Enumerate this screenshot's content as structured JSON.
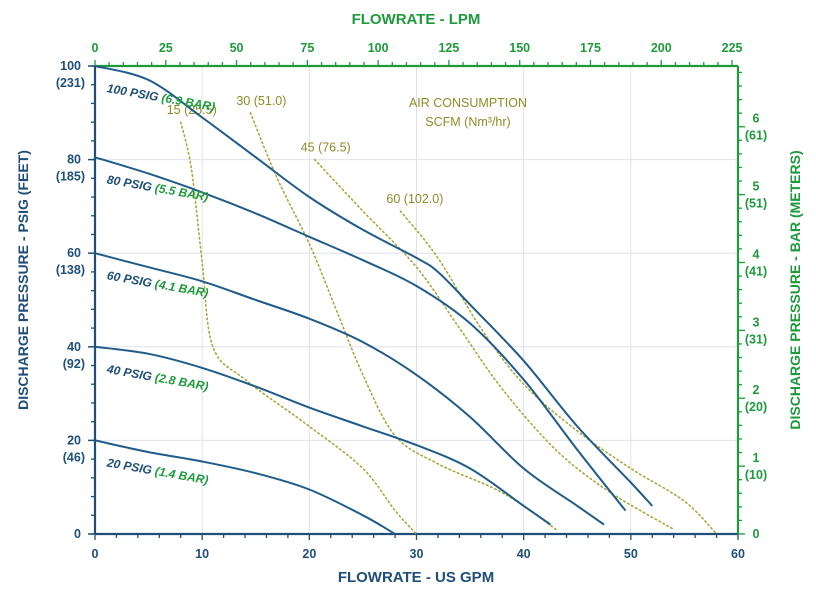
{
  "chart_data": {
    "type": "line",
    "title": "",
    "xlabel": "FLOWRATE - US GPM",
    "x2label": "FLOWRATE - LPM",
    "ylabel": "DISCHARGE PRESSURE - PSIG (FEET)",
    "y2label": "DISCHARGE PRESSURE - BAR (METERS)",
    "xlim": [
      0,
      60
    ],
    "ylim": [
      0,
      100
    ],
    "grid": true,
    "x_ticks": [
      "0",
      "10",
      "20",
      "30",
      "40",
      "50",
      "60"
    ],
    "x2_ticks": [
      "0",
      "25",
      "50",
      "75",
      "100",
      "125",
      "150",
      "175",
      "200",
      "225"
    ],
    "y_ticks": [
      {
        "psig": "0",
        "feet": ""
      },
      {
        "psig": "20",
        "feet": "(46)"
      },
      {
        "psig": "40",
        "feet": "(92)"
      },
      {
        "psig": "60",
        "feet": "(138)"
      },
      {
        "psig": "80",
        "feet": "(185)"
      },
      {
        "psig": "100",
        "feet": "(231)"
      }
    ],
    "y2_ticks": [
      {
        "bar": "0",
        "meters": ""
      },
      {
        "bar": "1",
        "meters": "(10)"
      },
      {
        "bar": "2",
        "meters": "(20)"
      },
      {
        "bar": "3",
        "meters": "(31)"
      },
      {
        "bar": "4",
        "meters": "(41)"
      },
      {
        "bar": "5",
        "meters": "(51)"
      },
      {
        "bar": "6",
        "meters": "(61)"
      }
    ],
    "series": [
      {
        "name": "100 PSIG",
        "name_bar": "(6.9 BAR)",
        "points": [
          [
            0,
            100
          ],
          [
            5,
            97
          ],
          [
            10,
            89
          ],
          [
            15,
            80.5
          ],
          [
            20,
            72
          ],
          [
            25,
            65
          ],
          [
            30,
            59
          ],
          [
            32,
            56
          ],
          [
            35,
            49
          ],
          [
            40,
            37
          ],
          [
            45,
            23
          ],
          [
            50,
            11
          ],
          [
            52,
            6
          ]
        ]
      },
      {
        "name": "80 PSIG",
        "name_bar": "(5.5 BAR)",
        "points": [
          [
            0,
            80.5
          ],
          [
            5,
            77
          ],
          [
            10,
            73
          ],
          [
            15,
            68.5
          ],
          [
            20,
            63.5
          ],
          [
            25,
            58.5
          ],
          [
            30,
            53
          ],
          [
            35,
            45
          ],
          [
            40,
            33
          ],
          [
            45,
            18
          ],
          [
            49.5,
            5
          ]
        ]
      },
      {
        "name": "60 PSIG",
        "name_bar": "(4.1 BAR)",
        "points": [
          [
            0,
            60
          ],
          [
            5,
            57
          ],
          [
            10,
            54
          ],
          [
            15,
            50
          ],
          [
            20,
            46
          ],
          [
            25,
            41
          ],
          [
            30,
            34
          ],
          [
            35,
            25
          ],
          [
            40,
            14
          ],
          [
            45,
            6
          ],
          [
            47.5,
            2
          ]
        ]
      },
      {
        "name": "40 PSIG",
        "name_bar": "(2.8 BAR)",
        "points": [
          [
            0,
            40
          ],
          [
            5,
            38.5
          ],
          [
            10,
            35.5
          ],
          [
            15,
            31.5
          ],
          [
            20,
            27
          ],
          [
            25,
            23
          ],
          [
            30,
            19
          ],
          [
            35,
            14
          ],
          [
            40,
            6
          ],
          [
            42.5,
            2
          ]
        ]
      },
      {
        "name": "20 PSIG",
        "name_bar": "(1.4 BAR)",
        "points": [
          [
            0,
            20
          ],
          [
            5,
            17.5
          ],
          [
            10,
            15.5
          ],
          [
            15,
            13
          ],
          [
            20,
            9.5
          ],
          [
            25,
            4
          ],
          [
            28,
            0
          ]
        ]
      }
    ],
    "air_consumption": {
      "title_line1": "AIR CONSUMPTION",
      "title_line2": "SCFM (Nm³/hr)",
      "lines": [
        {
          "label": "15 (25.5)",
          "points": [
            [
              8,
              88
            ],
            [
              9,
              78
            ],
            [
              10,
              58
            ],
            [
              11,
              40
            ],
            [
              14,
              33
            ],
            [
              20,
              23
            ],
            [
              25,
              14
            ],
            [
              28,
              5
            ],
            [
              30,
              0
            ]
          ]
        },
        {
          "label": "30 (51.0)",
          "points": [
            [
              14.5,
              90
            ],
            [
              17,
              76
            ],
            [
              20,
              62
            ],
            [
              22.5,
              48
            ],
            [
              25,
              34
            ],
            [
              28,
              21
            ],
            [
              32,
              15
            ],
            [
              37,
              10
            ],
            [
              40,
              6
            ],
            [
              43,
              1
            ]
          ]
        },
        {
          "label": "45 (76.5)",
          "points": [
            [
              20.5,
              80
            ],
            [
              25,
              69
            ],
            [
              30,
              57
            ],
            [
              34,
              44
            ],
            [
              38,
              31
            ],
            [
              43,
              18
            ],
            [
              48,
              9
            ],
            [
              54,
              1
            ]
          ]
        },
        {
          "label": "60 (102.0)",
          "points": [
            [
              28.5,
              69
            ],
            [
              32,
              59
            ],
            [
              36,
              44
            ],
            [
              40,
              32
            ],
            [
              45,
              22
            ],
            [
              50,
              14
            ],
            [
              55,
              7
            ],
            [
              58,
              0
            ]
          ]
        }
      ]
    }
  }
}
